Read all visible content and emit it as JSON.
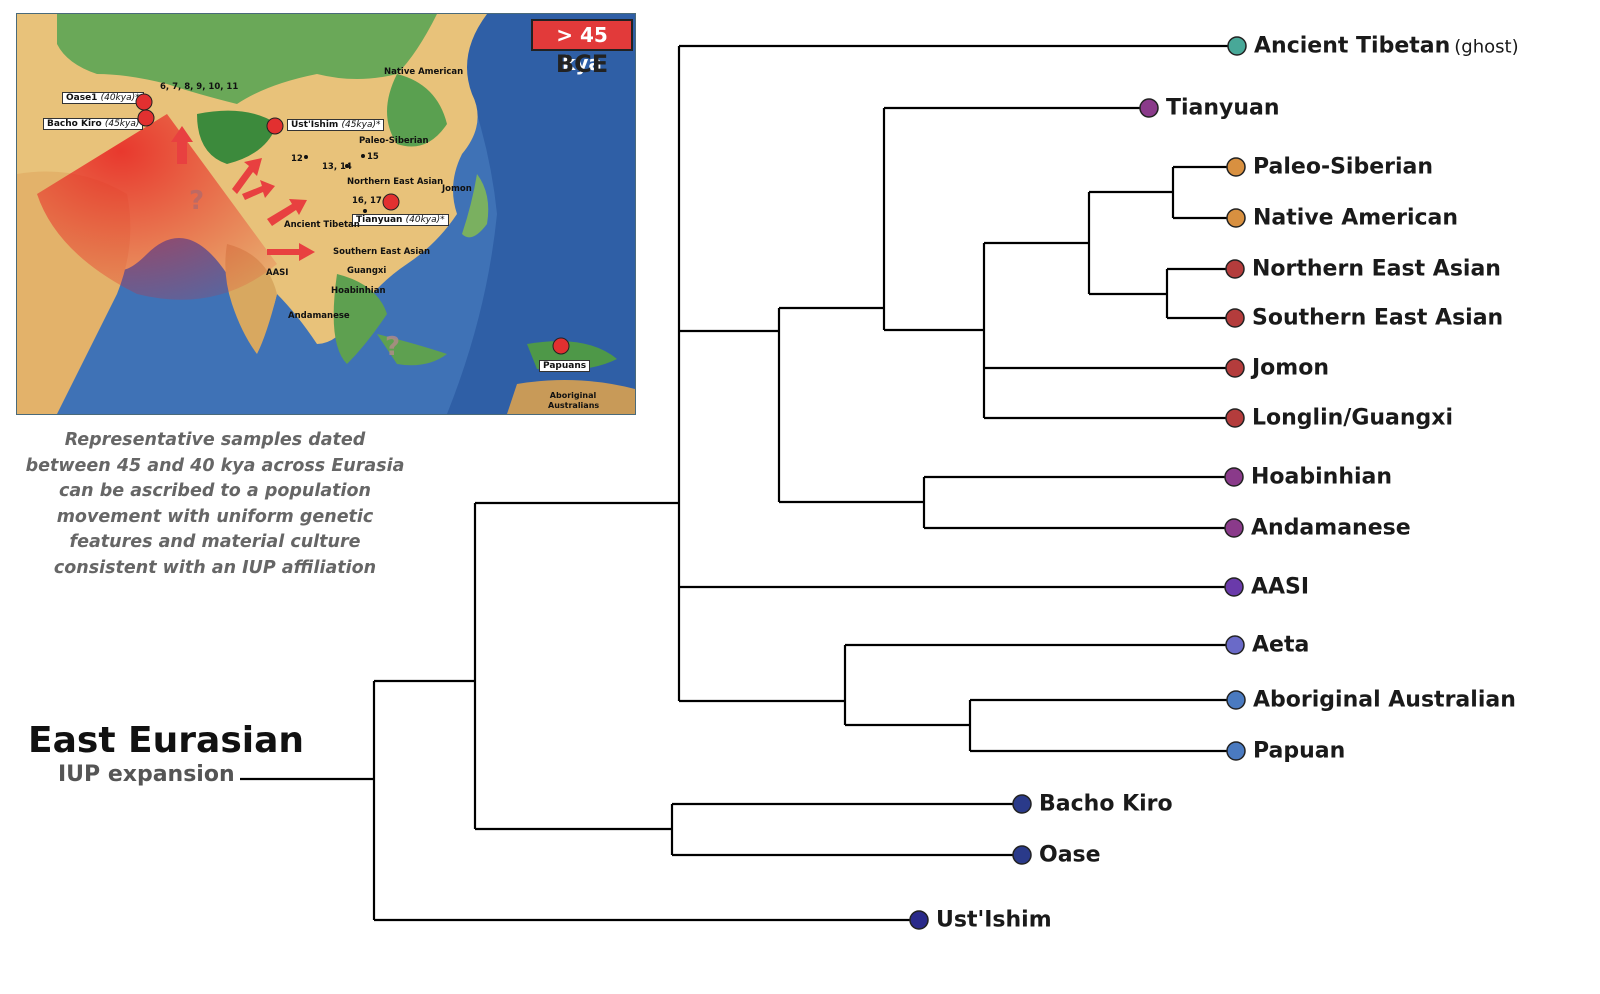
{
  "map": {
    "badge": "> 45 kya",
    "era": "BCE",
    "labels": {
      "oase1_name": "Oase1",
      "oase1_date": "(40kya)*",
      "bacho_kiro_name": "Bacho Kiro",
      "bacho_kiro_date": "(45kya)",
      "ust_ishim_name": "Ust'Ishim",
      "ust_ishim_date": "(45kya)*",
      "tianyuan_name": "Tianyuan",
      "tianyuan_date": "(40kya)*",
      "papuans": "Papuans",
      "native_american": "Native American",
      "paleo_siberian": "Paleo-Siberian",
      "northern_east_asian": "Northern East Asian",
      "jomon": "Jomon",
      "ancient_tibetan": "Ancient Tibetan",
      "southern_east_asian": "Southern East Asian",
      "aasi": "AASI",
      "guangxi": "Guangxi",
      "hoabinhian": "Hoabinhian",
      "andamanese": "Andamanese",
      "aboriginal_australians": "Aboriginal Australians",
      "num_6_11": "6, 7, 8, 9, 10, 11",
      "num_12": "12",
      "num_13_14": "13, 14",
      "num_15": "15",
      "num_16_17": "16, 17",
      "question_mark": "?"
    }
  },
  "caption": "Representative samples dated between 45 and 40 kya across Eurasia can be ascribed to a population movement with uniform genetic features and material culture consistent with an IUP affiliation",
  "root": {
    "title": "East Eurasian",
    "subtitle": "IUP expansion"
  },
  "tree": {
    "leaves": [
      {
        "id": "ancient_tibetan",
        "label": "Ancient Tibetan",
        "suffix": "(ghost)",
        "color": "#48a898"
      },
      {
        "id": "tianyuan",
        "label": "Tianyuan",
        "color": "#8a3a8a"
      },
      {
        "id": "paleo_siberian",
        "label": "Paleo-Siberian",
        "color": "#d89040"
      },
      {
        "id": "native_american",
        "label": "Native American",
        "color": "#d89040"
      },
      {
        "id": "northern_east_asian",
        "label": "Northern East Asian",
        "color": "#b43c3c"
      },
      {
        "id": "southern_east_asian",
        "label": "Southern East Asian",
        "color": "#b43c3c"
      },
      {
        "id": "jomon",
        "label": "Jomon",
        "color": "#b43c3c"
      },
      {
        "id": "longlin_guangxi",
        "label": "Longlin/Guangxi",
        "color": "#b43c3c"
      },
      {
        "id": "hoabinhian",
        "label": "Hoabinhian",
        "color": "#8a3a8a"
      },
      {
        "id": "andamanese",
        "label": "Andamanese",
        "color": "#8a3a8a"
      },
      {
        "id": "aasi",
        "label": "AASI",
        "color": "#6a3aaa"
      },
      {
        "id": "aeta",
        "label": "Aeta",
        "color": "#6a6ac8"
      },
      {
        "id": "aboriginal_australian",
        "label": "Aboriginal Australian",
        "color": "#4a7ac0"
      },
      {
        "id": "papuan",
        "label": "Papuan",
        "color": "#4a7ac0"
      },
      {
        "id": "bacho_kiro",
        "label": "Bacho Kiro",
        "color": "#2a3a8a"
      },
      {
        "id": "oase",
        "label": "Oase",
        "color": "#2a3a8a"
      },
      {
        "id": "ust_ishim",
        "label": "Ust'Ishim",
        "color": "#2a2a8a"
      }
    ],
    "line_color": "#000000"
  }
}
